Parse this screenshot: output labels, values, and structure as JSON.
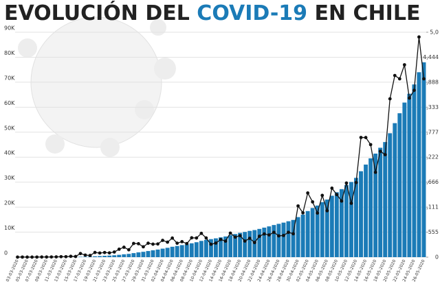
{
  "chart_data": {
    "type": "bar-line",
    "title": {
      "before": "EVOLUCIÓN DEL",
      "highlight": "COVID-19",
      "after": "EN CHILE"
    },
    "categories": [
      "03-03-2020",
      null,
      "05-03-2020",
      null,
      "07-03-2020",
      null,
      "09-03-2020",
      null,
      "11-03-2020",
      null,
      "13-03-2020",
      null,
      "15-03-2020",
      null,
      "17-03-2020",
      null,
      "19-03-2020",
      null,
      "21-03-2020",
      null,
      "23-03-2020",
      null,
      "25-03-2020",
      null,
      "27-03-2020",
      null,
      "29-03-2020",
      null,
      "31-03-2020",
      null,
      "02-04-2020",
      null,
      "04-04-2020",
      null,
      "06-04-2020",
      null,
      "08-04-2020",
      null,
      "10-04-2020",
      null,
      "12-04-2020",
      null,
      "14-04-2020",
      null,
      "16-04-2020",
      null,
      "18-04-2020",
      null,
      "20-04-2020",
      null,
      "22-04-2020",
      null,
      "24-04-2020",
      null,
      "26-04-2020",
      null,
      "28-04-2020",
      null,
      "30-04-2020",
      null,
      "02-05-2020",
      null,
      "04-05-2020",
      null,
      "06-05-2020",
      null,
      "08-05-2020",
      null,
      "10-05-2020",
      null,
      "12-05-2020",
      null,
      "14-05-2020",
      null,
      "16-05-2020",
      null,
      "18-05-2020",
      null,
      "20-05-2020",
      null,
      "22-05-2020",
      null,
      "24-05-2020",
      null,
      "26-05-2020"
    ],
    "series": [
      {
        "color": "#1b7bb7",
        "values": [
          1,
          3,
          4,
          5,
          7,
          10,
          13,
          17,
          23,
          33,
          43,
          61,
          75,
          155,
          201,
          238,
          342,
          434,
          537,
          632,
          746,
          922,
          1142,
          1306,
          1610,
          1909,
          2139,
          2449,
          2738,
          3031,
          3404,
          3737,
          4161,
          4471,
          4815,
          5116,
          5546,
          5972,
          6501,
          6927,
          7213,
          7525,
          7917,
          8273,
          8807,
          9252,
          9730,
          10088,
          10507,
          10832,
          11296,
          11812,
          12306,
          12858,
          13331,
          13813,
          14365,
          14885,
          16023,
          17008,
          18435,
          19663,
          20643,
          22016,
          23048,
          24581,
          25972,
          27219,
          28866,
          30063,
          31721,
          34381,
          37040,
          39542,
          41428,
          43781,
          46059,
          49579,
          53617,
          57581,
          61857,
          65393,
          69102,
          73997,
          77961
        ]
      },
      {
        "color": "#111111",
        "axis": "y2",
        "values": [
          1,
          2,
          1,
          1,
          2,
          3,
          3,
          4,
          6,
          10,
          10,
          18,
          14,
          80,
          46,
          37,
          104,
          92,
          103,
          95,
          114,
          176,
          220,
          164,
          304,
          299,
          230,
          310,
          289,
          293,
          373,
          333,
          424,
          310,
          344,
          301,
          430,
          426,
          529,
          426,
          286,
          312,
          392,
          356,
          534,
          445,
          478,
          358,
          419,
          325,
          464,
          516,
          494,
          552,
          473,
          482,
          552,
          520,
          1138,
          985,
          1427,
          1228,
          980,
          1373,
          1032,
          1533,
          1391,
          1247,
          1647,
          1197,
          1658,
          2660,
          2659,
          2502,
          1886,
          2353,
          2278,
          3520,
          4038,
          3964,
          4276,
          3536,
          3709,
          4895,
          3964
        ]
      }
    ],
    "ylim": [
      0,
      90000
    ],
    "yticks": [
      0,
      {
        "value": 10000,
        "label": "10K"
      },
      {
        "value": 20000,
        "label": "20K"
      },
      {
        "value": 30000,
        "label": "30K"
      },
      {
        "value": 40000,
        "label": "40K"
      },
      {
        "value": 50000,
        "label": "50K"
      },
      {
        "value": 60000,
        "label": "60K"
      },
      {
        "value": 70000,
        "label": "70K"
      },
      {
        "value": 80000,
        "label": "80K"
      },
      {
        "value": 90000,
        "label": "90K"
      }
    ],
    "y2lim": [
      0,
      5000
    ],
    "y2ticks": [
      0,
      555,
      {
        "value": 1111,
        "label": "1,111"
      },
      {
        "value": 1666,
        "label": "1,666"
      },
      {
        "value": 2222,
        "label": "2,222"
      },
      {
        "value": 2777,
        "label": "2,777"
      },
      {
        "value": 3333,
        "label": "3,333"
      },
      {
        "value": 3888,
        "label": "3,888"
      },
      {
        "value": 4444,
        "label": "4,444"
      },
      {
        "value": 5000,
        "label": "5,0"
      }
    ],
    "grid": true
  }
}
